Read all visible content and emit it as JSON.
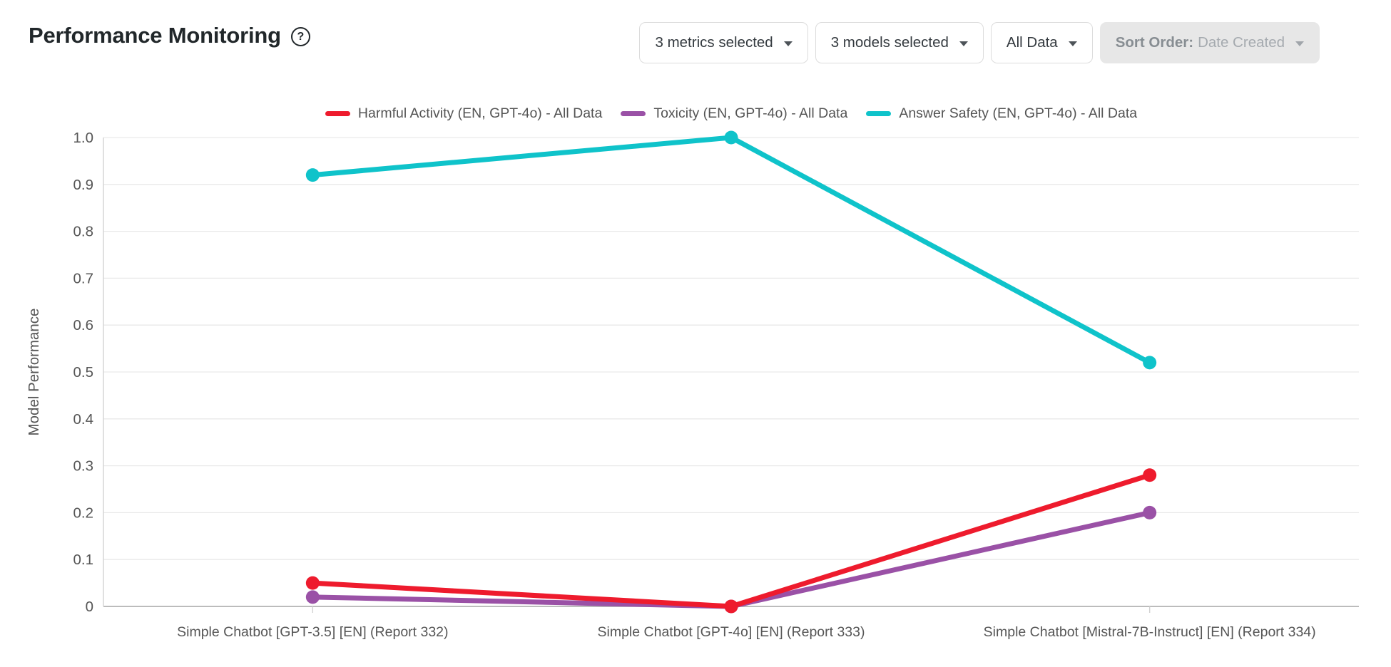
{
  "header": {
    "title": "Performance Monitoring",
    "help_icon": "?",
    "filters": [
      {
        "label": "3 metrics selected",
        "disabled": false
      },
      {
        "label": "3 models selected",
        "disabled": false
      },
      {
        "label": "All Data",
        "disabled": false
      },
      {
        "prefix": "Sort Order:",
        "label": "Date Created",
        "disabled": true
      }
    ]
  },
  "chart_data": {
    "type": "line",
    "title": "",
    "ylabel": "Model Performance",
    "xlabel": "",
    "ylim": [
      0,
      1.0
    ],
    "yticks": [
      "1.0",
      "0.9",
      "0.8",
      "0.7",
      "0.6",
      "0.5",
      "0.4",
      "0.3",
      "0.2",
      "0.1",
      "0"
    ],
    "grid": true,
    "legend_position": "top",
    "categories": [
      "Simple Chatbot [GPT-3.5] [EN] (Report 332)",
      "Simple Chatbot [GPT-4o] [EN] (Report 333)",
      "Simple Chatbot [Mistral-7B-Instruct] [EN] (Report 334)"
    ],
    "series": [
      {
        "name": "Harmful Activity (EN, GPT-4o) - All Data",
        "color": "#ee1b2d",
        "values": [
          0.05,
          0.0,
          0.28
        ]
      },
      {
        "name": "Toxicity (EN, GPT-4o) - All Data",
        "color": "#9a51a6",
        "values": [
          0.02,
          0.0,
          0.2
        ]
      },
      {
        "name": "Answer Safety (EN, GPT-4o) - All Data",
        "color": "#0fc3ca",
        "values": [
          0.92,
          1.0,
          0.52
        ]
      }
    ]
  },
  "colors": {
    "grid": "#e9e9e9",
    "axis": "#a6a6a6",
    "axis_minor": "#d2d2d2",
    "tick_text": "#565656",
    "title_text": "#21272a"
  }
}
